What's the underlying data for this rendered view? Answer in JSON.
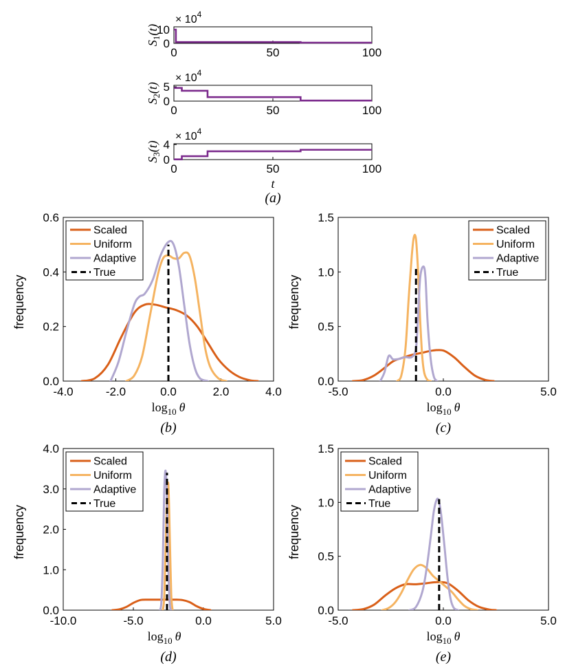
{
  "colors": {
    "scaled": "#d95f18",
    "uniform": "#f5b360",
    "adaptive": "#b0a7cf",
    "true": "#000000",
    "signal": "#7b2a8c"
  },
  "chart_data": [
    {
      "id": "S1",
      "type": "line",
      "style": "step",
      "ylabel_base": "S",
      "ylabel_sub": "1",
      "ylabel_suffix": "(t)",
      "multiplier_base": "× 10",
      "multiplier_exp": "4",
      "xlim": [
        0,
        100
      ],
      "ylim": [
        0,
        12
      ],
      "xticks": [
        0,
        50,
        100
      ],
      "xticklabels": [
        "0",
        "50",
        "100"
      ],
      "yticks": [
        0,
        10
      ],
      "yticklabels": [
        "0",
        "10"
      ],
      "steps": [
        [
          0,
          10.0
        ],
        [
          1,
          0.9
        ],
        [
          64,
          0.5
        ],
        [
          100,
          0.5
        ]
      ]
    },
    {
      "id": "S2",
      "type": "line",
      "style": "step",
      "ylabel_base": "S",
      "ylabel_sub": "2",
      "ylabel_suffix": "(t)",
      "multiplier_base": "× 10",
      "multiplier_exp": "4",
      "xlim": [
        0,
        100
      ],
      "ylim": [
        0,
        5.5
      ],
      "xticks": [
        0,
        50,
        100
      ],
      "xticklabels": [
        "0",
        "50",
        "100"
      ],
      "yticks": [
        0,
        5
      ],
      "yticklabels": [
        "0",
        "5"
      ],
      "steps": [
        [
          0,
          4.6
        ],
        [
          4,
          3.6
        ],
        [
          17,
          1.4
        ],
        [
          64,
          0.2
        ],
        [
          100,
          0.2
        ]
      ]
    },
    {
      "id": "S3",
      "type": "line",
      "style": "step",
      "ylabel_base": "S",
      "ylabel_sub": "3",
      "ylabel_suffix": "(t)",
      "multiplier_base": "× 10",
      "multiplier_exp": "4",
      "xlim": [
        0,
        100
      ],
      "ylim": [
        0,
        4.2
      ],
      "xticks": [
        0,
        50,
        100
      ],
      "xticklabels": [
        "0",
        "50",
        "100"
      ],
      "yticks": [
        0,
        4
      ],
      "yticklabels": [
        "0",
        "4"
      ],
      "xlabel": "t",
      "caption": "(a)",
      "steps": [
        [
          0,
          0.05
        ],
        [
          4,
          0.9
        ],
        [
          17,
          2.2
        ],
        [
          64,
          2.6
        ],
        [
          100,
          2.6
        ]
      ]
    },
    {
      "id": "b",
      "type": "line",
      "xlabel_base": "log",
      "xlabel_sub": "10",
      "xlabel_var": "θ",
      "ylabel": "frequency",
      "caption": "(b)",
      "xlim": [
        -4,
        4
      ],
      "ylim": [
        0,
        0.6
      ],
      "xticks": [
        -4,
        -2,
        0,
        2,
        4
      ],
      "xticklabels": [
        "-4.0",
        "-2.0",
        "0.0",
        "2.0",
        "4.0"
      ],
      "yticks": [
        0,
        0.2,
        0.4,
        0.6
      ],
      "yticklabels": [
        "0.0",
        "0.2",
        "0.4",
        "0.6"
      ],
      "legend": [
        "Scaled",
        "Uniform",
        "Adaptive",
        "True"
      ],
      "legend_position": "top-left",
      "true_line": {
        "x": 0.0,
        "y": 0.5
      },
      "series": [
        {
          "name": "Scaled",
          "x": [
            -3.3,
            -2.8,
            -2.3,
            -1.8,
            -1.3,
            -0.9,
            -0.5,
            -0.1,
            0.3,
            0.7,
            1.1,
            1.5,
            1.9,
            2.3,
            2.7,
            3.1,
            3.4
          ],
          "y": [
            0.0,
            0.01,
            0.06,
            0.16,
            0.25,
            0.28,
            0.28,
            0.27,
            0.26,
            0.24,
            0.2,
            0.14,
            0.08,
            0.04,
            0.015,
            0.003,
            0.0
          ]
        },
        {
          "name": "Uniform",
          "x": [
            -1.6,
            -1.3,
            -1.0,
            -0.7,
            -0.4,
            -0.2,
            0.0,
            0.2,
            0.4,
            0.6,
            0.8,
            1.0,
            1.2,
            1.4,
            1.6,
            1.9,
            2.2
          ],
          "y": [
            0.0,
            0.02,
            0.09,
            0.24,
            0.39,
            0.45,
            0.46,
            0.45,
            0.45,
            0.47,
            0.46,
            0.38,
            0.25,
            0.12,
            0.05,
            0.01,
            0.0
          ]
        },
        {
          "name": "Adaptive",
          "x": [
            -2.2,
            -1.9,
            -1.6,
            -1.3,
            -1.1,
            -0.9,
            -0.6,
            -0.3,
            0.0,
            0.2,
            0.4,
            0.6,
            0.8,
            1.0,
            1.2,
            1.5
          ],
          "y": [
            0.0,
            0.07,
            0.18,
            0.28,
            0.31,
            0.32,
            0.37,
            0.46,
            0.51,
            0.5,
            0.42,
            0.28,
            0.14,
            0.05,
            0.01,
            0.0
          ]
        }
      ]
    },
    {
      "id": "c",
      "type": "line",
      "xlabel_base": "log",
      "xlabel_sub": "10",
      "xlabel_var": "θ",
      "ylabel": "frequency",
      "caption": "(c)",
      "xlim": [
        -5,
        5
      ],
      "ylim": [
        0,
        1.5
      ],
      "xticks": [
        -5,
        0,
        5
      ],
      "xticklabels": [
        "-5.0",
        "0.0",
        "5.0"
      ],
      "yticks": [
        0,
        0.5,
        1.0,
        1.5
      ],
      "yticklabels": [
        "0.0",
        "0.5",
        "1.0",
        "1.5"
      ],
      "legend": [
        "Scaled",
        "Uniform",
        "Adaptive",
        "True"
      ],
      "legend_position": "top-right",
      "true_line": {
        "x": -1.3,
        "y": 1.05
      },
      "series": [
        {
          "name": "Scaled",
          "x": [
            -4.3,
            -3.8,
            -3.3,
            -2.8,
            -2.4,
            -2.0,
            -1.5,
            -1.0,
            -0.5,
            0.0,
            0.5,
            1.0,
            1.5,
            2.0,
            2.4
          ],
          "y": [
            0.0,
            0.01,
            0.05,
            0.12,
            0.18,
            0.21,
            0.24,
            0.26,
            0.28,
            0.28,
            0.22,
            0.13,
            0.05,
            0.01,
            0.0
          ]
        },
        {
          "name": "Uniform",
          "x": [
            -2.2,
            -2.0,
            -1.8,
            -1.65,
            -1.5,
            -1.4,
            -1.3,
            -1.2,
            -1.1,
            -1.0,
            -0.9,
            -0.75,
            -0.6
          ],
          "y": [
            0.0,
            0.05,
            0.3,
            0.75,
            1.15,
            1.32,
            1.3,
            1.0,
            0.55,
            0.22,
            0.07,
            0.01,
            0.0
          ]
        },
        {
          "name": "Adaptive",
          "x": [
            -3.0,
            -2.8,
            -2.6,
            -2.4,
            -2.2,
            -2.0,
            -1.8,
            -1.5,
            -1.3,
            -1.2,
            -1.1,
            -0.95,
            -0.85,
            -0.75,
            -0.6,
            -0.45,
            -0.3
          ],
          "y": [
            0.0,
            0.08,
            0.23,
            0.2,
            0.2,
            0.21,
            0.22,
            0.22,
            0.3,
            0.6,
            0.95,
            1.05,
            0.95,
            0.55,
            0.2,
            0.04,
            0.0
          ]
        }
      ]
    },
    {
      "id": "d",
      "type": "line",
      "xlabel_base": "log",
      "xlabel_sub": "10",
      "xlabel_var": "θ",
      "ylabel": "frequency",
      "caption": "(d)",
      "xlim": [
        -10,
        5
      ],
      "ylim": [
        0,
        4.0
      ],
      "xticks": [
        -10,
        -5,
        0,
        5
      ],
      "xticklabels": [
        "-10.0",
        "-5.0",
        "0.0",
        "5.0"
      ],
      "yticks": [
        0,
        1.0,
        2.0,
        3.0,
        4.0
      ],
      "yticklabels": [
        "0.0",
        "1.0",
        "2.0",
        "3.0",
        "4.0"
      ],
      "legend": [
        "Scaled",
        "Uniform",
        "Adaptive",
        "True"
      ],
      "legend_position": "top-left",
      "true_line": {
        "x": -2.6,
        "y": 3.4
      },
      "series": [
        {
          "name": "Scaled",
          "x": [
            -6.5,
            -6.0,
            -5.5,
            -5.0,
            -4.5,
            -4.0,
            -3.5,
            -3.0,
            -2.5,
            -2.0,
            -1.5,
            -1.0,
            -0.5,
            0.0,
            0.5
          ],
          "y": [
            0.0,
            0.02,
            0.08,
            0.18,
            0.25,
            0.26,
            0.26,
            0.26,
            0.26,
            0.26,
            0.25,
            0.2,
            0.1,
            0.03,
            0.0
          ]
        },
        {
          "name": "Uniform",
          "x": [
            -2.9,
            -2.8,
            -2.7,
            -2.6,
            -2.5,
            -2.4,
            -2.3,
            -2.2
          ],
          "y": [
            0.0,
            0.3,
            1.5,
            2.8,
            3.1,
            1.8,
            0.4,
            0.0
          ]
        },
        {
          "name": "Adaptive",
          "x": [
            -3.1,
            -3.0,
            -2.9,
            -2.8,
            -2.7,
            -2.6,
            -2.5,
            -2.4,
            -2.3
          ],
          "y": [
            0.0,
            0.2,
            1.2,
            2.9,
            3.45,
            2.7,
            1.0,
            0.15,
            0.0
          ]
        }
      ]
    },
    {
      "id": "e",
      "type": "line",
      "xlabel_base": "log",
      "xlabel_sub": "10",
      "xlabel_var": "θ",
      "ylabel": "frequency",
      "caption": "(e)",
      "xlim": [
        -5,
        5
      ],
      "ylim": [
        0,
        1.5
      ],
      "xticks": [
        -5,
        0,
        5
      ],
      "xticklabels": [
        "-5.0",
        "0.0",
        "5.0"
      ],
      "yticks": [
        0,
        0.5,
        1.0,
        1.5
      ],
      "yticklabels": [
        "0.0",
        "0.5",
        "1.0",
        "1.5"
      ],
      "legend": [
        "Scaled",
        "Uniform",
        "Adaptive",
        "True"
      ],
      "legend_position": "top-left",
      "true_line": {
        "x": -0.2,
        "y": 1.03
      },
      "series": [
        {
          "name": "Scaled",
          "x": [
            -4.3,
            -3.8,
            -3.3,
            -2.8,
            -2.3,
            -1.8,
            -1.3,
            -0.8,
            -0.3,
            0.2,
            0.7,
            1.2,
            1.7,
            2.2,
            2.5
          ],
          "y": [
            0.0,
            0.01,
            0.05,
            0.13,
            0.2,
            0.24,
            0.24,
            0.25,
            0.26,
            0.25,
            0.18,
            0.09,
            0.03,
            0.005,
            0.0
          ]
        },
        {
          "name": "Uniform",
          "x": [
            -2.9,
            -2.6,
            -2.3,
            -2.0,
            -1.7,
            -1.4,
            -1.1,
            -0.8,
            -0.5,
            -0.2,
            0.1,
            0.4,
            0.7,
            1.0,
            1.3,
            1.6
          ],
          "y": [
            0.0,
            0.02,
            0.07,
            0.16,
            0.28,
            0.38,
            0.42,
            0.39,
            0.32,
            0.27,
            0.22,
            0.17,
            0.1,
            0.04,
            0.01,
            0.0
          ]
        },
        {
          "name": "Adaptive",
          "x": [
            -1.6,
            -1.3,
            -1.0,
            -0.8,
            -0.6,
            -0.45,
            -0.3,
            -0.2,
            -0.1,
            0.05,
            0.2,
            0.35,
            0.5,
            0.7
          ],
          "y": [
            0.0,
            0.03,
            0.17,
            0.38,
            0.68,
            0.92,
            1.03,
            1.0,
            0.88,
            0.6,
            0.3,
            0.1,
            0.02,
            0.0
          ]
        }
      ]
    }
  ]
}
